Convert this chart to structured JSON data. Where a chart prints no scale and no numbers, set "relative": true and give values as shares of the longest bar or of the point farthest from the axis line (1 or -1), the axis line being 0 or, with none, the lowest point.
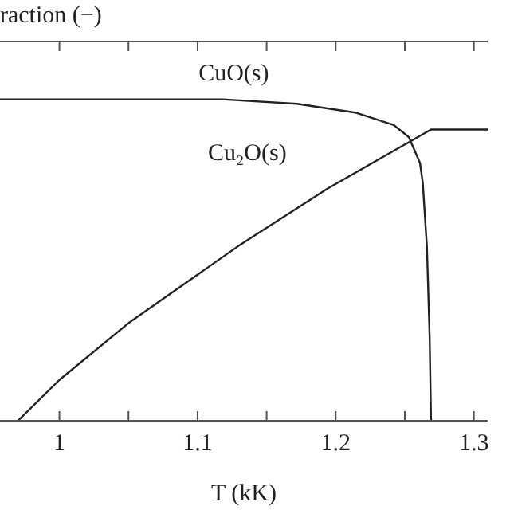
{
  "chart_data": {
    "type": "line",
    "ylabel": "raction (−)",
    "xlabel": "T (kK)",
    "relative": true,
    "xlim": [
      0.957,
      1.31
    ],
    "xticks": [
      1,
      {
        "value": 1.05,
        "label": null
      },
      1.1,
      {
        "value": 1.15,
        "label": null
      },
      1.2,
      {
        "value": 1.25,
        "label": null
      },
      1.3
    ],
    "marker": "none",
    "line_style": "solid",
    "series": [
      {
        "name": "CuO(s)",
        "color": "#222222",
        "x": [
          0.957,
          1.118,
          1.172,
          1.215,
          1.242,
          1.253,
          1.261,
          1.263,
          1.266,
          1.268,
          1.269
        ],
        "values": [
          1,
          1,
          0.986,
          0.958,
          0.92,
          0.882,
          0.802,
          0.741,
          0.542,
          0.259,
          0
        ]
      },
      {
        "name": "Cu₂O(s)",
        "color": "#222222",
        "x": [
          0.97,
          1.0,
          1.051,
          1.129,
          1.194,
          1.269,
          1.31
        ],
        "values": [
          0,
          0.127,
          0.307,
          0.542,
          0.722,
          0.906,
          0.906
        ]
      }
    ]
  }
}
